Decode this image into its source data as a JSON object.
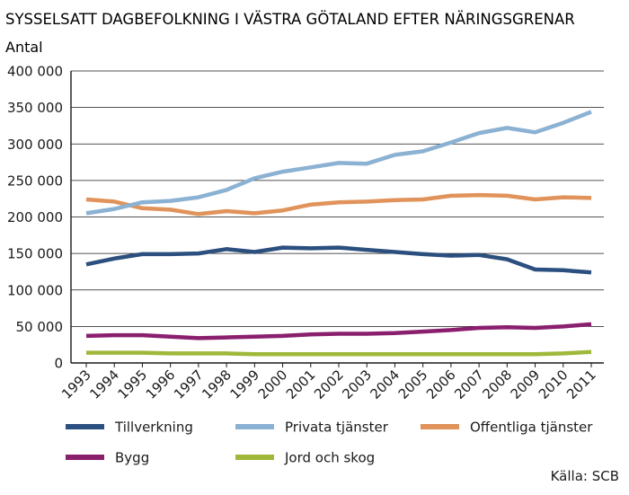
{
  "chart_data": {
    "type": "line",
    "title": "SYSSELSATT DAGBEFOLKNING I VÄSTRA GÖTALAND EFTER NÄRINGSGRENAR",
    "ylabel": "Antal",
    "xlabel": "",
    "source": "Källa: SCB",
    "ylim": [
      0,
      400000
    ],
    "yticks": [
      0,
      50000,
      100000,
      150000,
      200000,
      250000,
      300000,
      350000,
      400000
    ],
    "ytick_labels": [
      "0",
      "50 000",
      "100 000",
      "150 000",
      "200 000",
      "250 000",
      "300 000",
      "350 000",
      "400 000"
    ],
    "x": [
      "1993",
      "1994",
      "1995",
      "1996",
      "1997",
      "1998",
      "1999",
      "2000",
      "2001",
      "2002",
      "2003",
      "2004",
      "2005",
      "2006",
      "2007",
      "2008",
      "2009",
      "2010",
      "2011"
    ],
    "grid": "horizontal",
    "legend_position": "bottom",
    "series": [
      {
        "name": "Tillverkning",
        "color": "#2b4f7e",
        "values": [
          135000,
          143000,
          149000,
          149000,
          150000,
          156000,
          152000,
          158000,
          157000,
          158000,
          155000,
          152000,
          149000,
          147000,
          148000,
          142000,
          128000,
          127000,
          124000
        ]
      },
      {
        "name": "Privata tjänster",
        "color": "#8bb1d3",
        "values": [
          205000,
          211000,
          220000,
          222000,
          227000,
          237000,
          253000,
          262000,
          268000,
          274000,
          273000,
          285000,
          290000,
          302000,
          315000,
          322000,
          316000,
          329000,
          344000
        ]
      },
      {
        "name": "Offentliga tjänster",
        "color": "#e0935a",
        "values": [
          224000,
          221000,
          212000,
          210000,
          204000,
          208000,
          205000,
          209000,
          217000,
          220000,
          221000,
          223000,
          224000,
          229000,
          230000,
          229000,
          224000,
          227000,
          226000
        ]
      },
      {
        "name": "Bygg",
        "color": "#8a1f6e",
        "values": [
          37000,
          38000,
          38000,
          36000,
          34000,
          35000,
          36000,
          37000,
          39000,
          40000,
          40000,
          41000,
          43000,
          45000,
          48000,
          49000,
          48000,
          50000,
          53000
        ]
      },
      {
        "name": "Jord och skog",
        "color": "#9fb83a",
        "values": [
          14000,
          14000,
          14000,
          13000,
          13000,
          13000,
          12000,
          12000,
          12000,
          12000,
          12000,
          12000,
          12000,
          12000,
          12000,
          12000,
          12000,
          13000,
          15000
        ]
      }
    ]
  }
}
